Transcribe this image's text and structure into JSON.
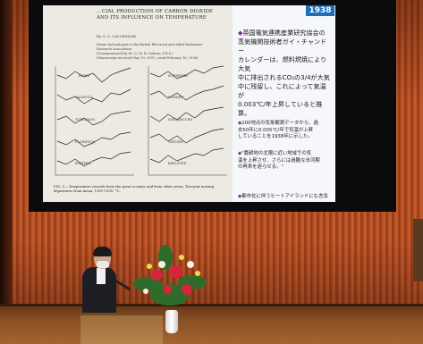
{
  "slide": {
    "year_badge": "1938",
    "paper_title": "...CIAL PRODUCTION OF CARBON DIOXIDE\nAND ITS INFLUENCE ON TEMPERATURE",
    "paper_author": "By G. S. CALLENDAR",
    "paper_meta": "Steam technologist to the British Electrical and Allied Industries\nResearch Association\n(Communicated by Dr. G. M. B. Dobson, F.R.S.)\n(Manuscript received May 19, 1937—read February 16, 1938)",
    "plot_labels_left": [
      "BABIS",
      "VALENTIA",
      "TORSHAVN",
      "FLORENCE",
      "ESBJERG"
    ],
    "plot_labels_right": [
      "SCHWERIN",
      "NORDEN",
      "STRASBOURG",
      "OXFORD",
      "KIHLSTEN"
    ],
    "figure_caption": "FIG. 5.—Temperature records from the great oceanic and from other areas. Ten-year moving departures from mean, 1901-1930, °C.",
    "jp_para1": "英国電気連携産業研究協会の\n蒸気機関技術者ガイ・チャンドー\nカレンダーは、燃料燃焼により大気\n中に排出されるCO₂の3/4が大気\n中に残留し、これによって気温が\n0.003℃/年上昇していると推算。",
    "jp_para2": "200地点の気象観測データから、過\n去50年に0.005℃/年で気温が上昇\nしていることを1938年に示した。",
    "jp_para3": "\"農耕地の北限に近い地域での気\n温を上昇させ、さらには過酷な氷河期\nの再来を遅らせる。\"",
    "jp_para4": "都市化に伴うヒートアイランドにも言及"
  }
}
